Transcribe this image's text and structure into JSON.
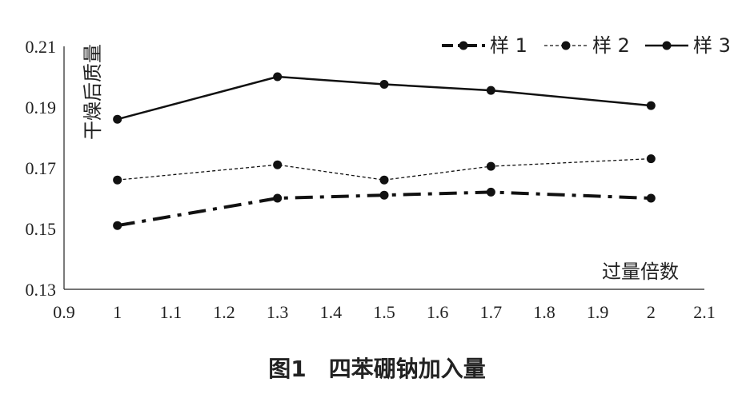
{
  "caption": "图1　四苯硼钠加入量",
  "chart_data": {
    "type": "line",
    "title": "",
    "xlabel": "过量倍数",
    "ylabel": "干燥后质量",
    "xlim": [
      0.9,
      2.1
    ],
    "ylim": [
      0.13,
      0.21
    ],
    "xticks": [
      "0.9",
      "1",
      "1.1",
      "1.2",
      "1.3",
      "1.4",
      "1.5",
      "1.6",
      "1.7",
      "1.8",
      "1.9",
      "2",
      "2.1"
    ],
    "yticks": [
      "0.13",
      "0.15",
      "0.17",
      "0.19",
      "0.21"
    ],
    "x": [
      1,
      1.3,
      1.5,
      1.7,
      2
    ],
    "legend_position": "top-right",
    "series": [
      {
        "name": "样 1",
        "style": "dash-dot",
        "values": [
          0.151,
          0.16,
          0.161,
          0.162,
          0.16
        ]
      },
      {
        "name": "样 2",
        "style": "dotted",
        "values": [
          0.166,
          0.171,
          0.166,
          0.1705,
          0.173
        ]
      },
      {
        "name": "样 3",
        "style": "solid",
        "values": [
          0.186,
          0.2,
          0.1975,
          0.1955,
          0.1905
        ]
      }
    ]
  }
}
